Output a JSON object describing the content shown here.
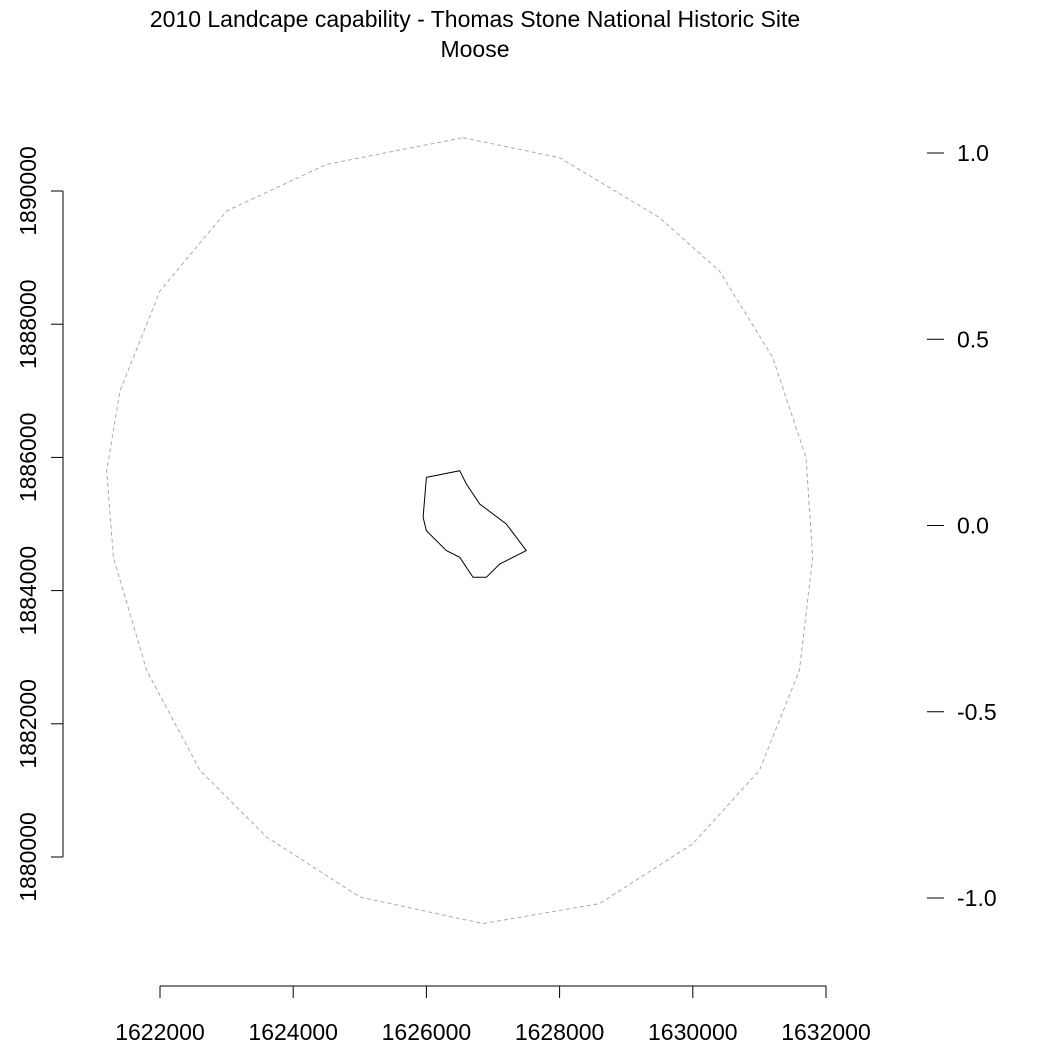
{
  "title": {
    "line1": "2010 Landcape capability - Thomas Stone National Historic Site",
    "line2": "Moose"
  },
  "axes": {
    "x_ticks": [
      "1622000",
      "1624000",
      "1626000",
      "1628000",
      "1630000",
      "1632000"
    ],
    "y_left_ticks": [
      "1880000",
      "1882000",
      "1884000",
      "1886000",
      "1888000",
      "1890000"
    ],
    "y_right_ticks": [
      "-1.0",
      "-0.5",
      "0.0",
      "0.5",
      "1.0"
    ]
  },
  "chart_data": {
    "type": "map",
    "xlim": [
      1622000,
      1632000
    ],
    "ylim_left": [
      1880000,
      1890000
    ],
    "ylim_right": [
      -1.0,
      1.0
    ],
    "layers": [
      {
        "id": "buffer",
        "style": "dashed-gray",
        "coords": [
          [
            1626550,
            1890800
          ],
          [
            1628000,
            1890500
          ],
          [
            1629500,
            1889600
          ],
          [
            1630400,
            1888800
          ],
          [
            1631200,
            1887500
          ],
          [
            1631700,
            1886000
          ],
          [
            1631800,
            1884500
          ],
          [
            1631600,
            1882800
          ],
          [
            1631000,
            1881300
          ],
          [
            1630000,
            1880200
          ],
          [
            1628600,
            1879300
          ],
          [
            1626850,
            1879000
          ],
          [
            1625000,
            1879400
          ],
          [
            1623600,
            1880300
          ],
          [
            1622600,
            1881300
          ],
          [
            1621800,
            1882800
          ],
          [
            1621300,
            1884500
          ],
          [
            1621200,
            1885800
          ],
          [
            1621400,
            1887000
          ],
          [
            1622000,
            1888500
          ],
          [
            1623000,
            1889700
          ],
          [
            1624500,
            1890400
          ],
          [
            1626550,
            1890800
          ]
        ]
      },
      {
        "id": "park-boundary",
        "style": "solid-black",
        "coords": [
          [
            1626000,
            1885700
          ],
          [
            1626500,
            1885800
          ],
          [
            1626600,
            1885600
          ],
          [
            1626800,
            1885300
          ],
          [
            1627200,
            1885000
          ],
          [
            1627500,
            1884600
          ],
          [
            1627100,
            1884400
          ],
          [
            1626900,
            1884200
          ],
          [
            1626700,
            1884200
          ],
          [
            1626500,
            1884500
          ],
          [
            1626300,
            1884600
          ],
          [
            1626000,
            1884900
          ],
          [
            1625950,
            1885100
          ],
          [
            1626000,
            1885700
          ]
        ]
      }
    ]
  }
}
